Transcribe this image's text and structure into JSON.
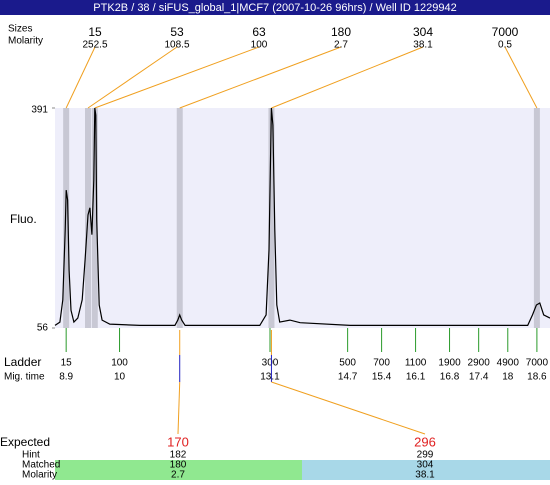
{
  "title": "PTK2B / 38 / siFUS_global_1|MCF7 (2007-10-26 96hrs) / Well ID 1229942",
  "header_labels": {
    "sizes": "Sizes",
    "molarity": "Molarity"
  },
  "peaks": [
    {
      "size": 15,
      "molarity": 252.5,
      "mig_time": 8.9
    },
    {
      "size": 53,
      "molarity": 108.5,
      "mig_time": 9.35
    },
    {
      "size": 63,
      "molarity": 100,
      "mig_time": 9.49
    },
    {
      "size": 180,
      "molarity": 2.7,
      "mig_time": 11.24
    },
    {
      "size": 304,
      "molarity": 38.1,
      "mig_time": 13.13
    },
    {
      "size": 7000,
      "molarity": 0.5,
      "mig_time": 18.6
    }
  ],
  "plot": {
    "ylabel": "Fluo.",
    "xlim": [
      8.67,
      18.87
    ],
    "ylim": [
      56,
      391
    ],
    "yticks": [
      56,
      391
    ],
    "trace": {
      "x": [
        8.67,
        8.77,
        8.83,
        8.88,
        8.9,
        8.93,
        8.96,
        9.0,
        9.06,
        9.14,
        9.23,
        9.29,
        9.35,
        9.39,
        9.43,
        9.47,
        9.49,
        9.51,
        9.53,
        9.58,
        9.64,
        9.8,
        10.42,
        11.14,
        11.2,
        11.24,
        11.28,
        11.35,
        12.89,
        13.02,
        13.08,
        13.12,
        13.13,
        13.16,
        13.2,
        13.24,
        13.3,
        13.51,
        13.72,
        14.75,
        16.8,
        18.41,
        18.51,
        18.59,
        18.66,
        18.74,
        18.87
      ],
      "y": [
        60,
        65,
        99,
        205,
        266,
        251,
        144,
        83,
        65,
        71,
        99,
        160,
        228,
        239,
        198,
        281,
        391,
        380,
        221,
        91,
        68,
        62,
        60,
        60,
        68,
        76,
        68,
        60,
        60,
        76,
        175,
        357,
        391,
        365,
        205,
        91,
        65,
        68,
        64,
        60,
        60,
        60,
        76,
        91,
        94,
        76,
        71
      ]
    }
  },
  "ladder": {
    "label": "Ladder",
    "time_label": "Mig. time",
    "sizes": [
      15,
      100,
      300,
      500,
      700,
      1100,
      1900,
      2900,
      4900,
      7000
    ],
    "mig_times": [
      8.9,
      10,
      13.1,
      14.7,
      15.4,
      16.1,
      16.8,
      17.4,
      18,
      18.6
    ]
  },
  "expected": {
    "labels": [
      "Expected",
      "Hint",
      "Matched",
      "Molarity"
    ],
    "columns": [
      {
        "expected": 170,
        "hint": 182,
        "matched": 180,
        "molarity": 2.7
      },
      {
        "expected": 296,
        "hint": 299,
        "matched": 304,
        "molarity": 38.1
      }
    ]
  }
}
